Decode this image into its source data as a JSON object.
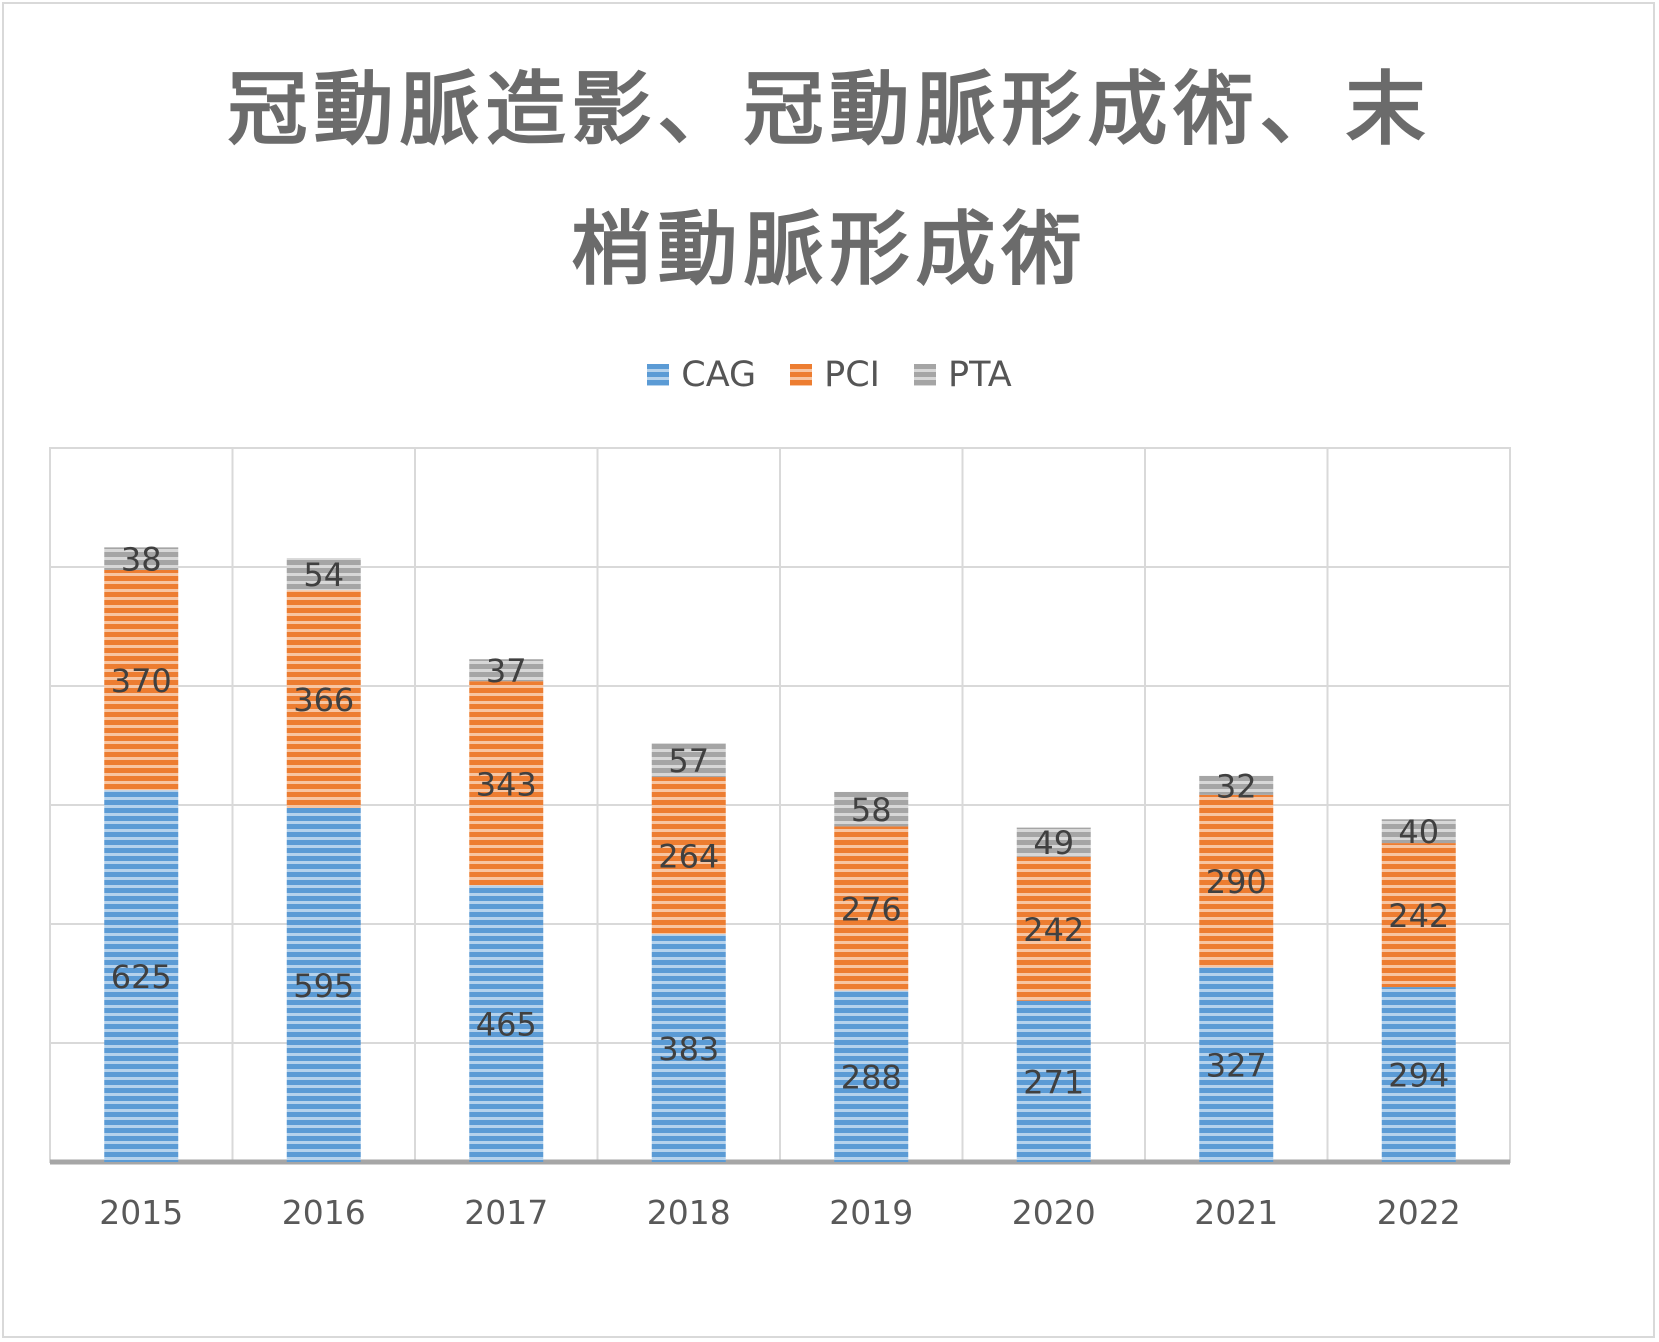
{
  "chart_data": {
    "type": "bar",
    "stacked": true,
    "title_lines": [
      "冠動脈造影、冠動脈形成術、末",
      "梢動脈形成術"
    ],
    "categories": [
      "2015",
      "2016",
      "2017",
      "2018",
      "2019",
      "2020",
      "2021",
      "2022"
    ],
    "series": [
      {
        "name": "CAG",
        "color": "#5b9bd5",
        "values": [
          625,
          595,
          465,
          383,
          288,
          271,
          327,
          294
        ]
      },
      {
        "name": "PCI",
        "color": "#ed7d31",
        "values": [
          370,
          366,
          343,
          264,
          276,
          242,
          290,
          242
        ]
      },
      {
        "name": "PTA",
        "color": "#a5a5a5",
        "values": [
          38,
          54,
          37,
          57,
          58,
          49,
          32,
          40
        ]
      }
    ],
    "ylim": [
      0,
      1200
    ],
    "gridlines": true,
    "legend_position": "top",
    "data_labels": true
  }
}
